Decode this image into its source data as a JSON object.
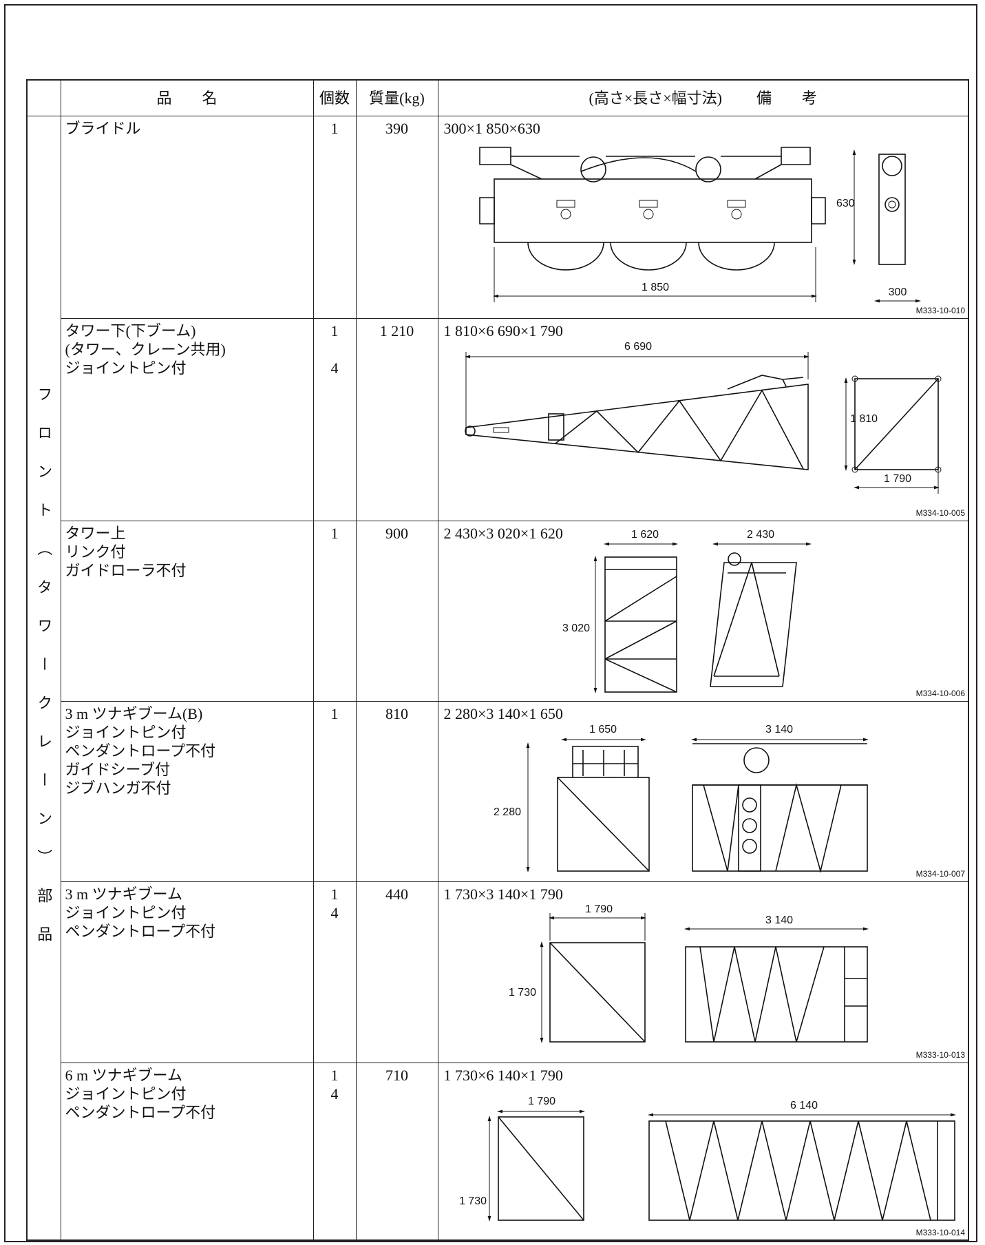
{
  "header": {
    "name": "品　　名",
    "count": "個数",
    "mass": "質量(kg)",
    "remarks_dims": "(高さ×長さ×幅寸法)",
    "remarks": "備　　考"
  },
  "group_label": "フロント（タワークレーン）部品",
  "rows": [
    {
      "name": [
        "ブライドル"
      ],
      "count": [
        "1"
      ],
      "mass": "390",
      "dimensions": "300×1 850×630",
      "drawing_labels": [
        "630",
        "1 850",
        "300"
      ],
      "figure_code": "M333-10-010"
    },
    {
      "name": [
        "タワー下(下ブーム)",
        "(タワー、クレーン共用)",
        "ジョイントピン付"
      ],
      "count": [
        "1",
        "4"
      ],
      "mass": "1 210",
      "dimensions": "1 810×6 690×1 790",
      "drawing_labels": [
        "6 690",
        "1 810",
        "1 790"
      ],
      "figure_code": "M334-10-005"
    },
    {
      "name": [
        "タワー上",
        "リンク付",
        "ガイドローラ不付"
      ],
      "count": [
        "1"
      ],
      "mass": "900",
      "dimensions": "2 430×3 020×1 620",
      "drawing_labels": [
        "1 620",
        "3 020",
        "2 430"
      ],
      "figure_code": "M334-10-006"
    },
    {
      "name": [
        "3 m ツナギブーム(B)",
        "ジョイントピン付",
        "ペンダントロープ不付",
        "ガイドシーブ付",
        "ジブハンガ不付"
      ],
      "count": [
        "1"
      ],
      "mass": "810",
      "dimensions": "2 280×3 140×1 650",
      "drawing_labels": [
        "1 650",
        "2 280",
        "3 140"
      ],
      "figure_code": "M334-10-007"
    },
    {
      "name": [
        "3 m ツナギブーム",
        "ジョイントピン付",
        "ペンダントロープ不付"
      ],
      "count": [
        "1",
        "4"
      ],
      "mass": "440",
      "dimensions": "1 730×3 140×1 790",
      "drawing_labels": [
        "1 790",
        "1 730",
        "3 140"
      ],
      "figure_code": "M333-10-013"
    },
    {
      "name": [
        "6 m ツナギブーム",
        "ジョイントピン付",
        "ペンダントロープ不付"
      ],
      "count": [
        "1",
        "4"
      ],
      "mass": "710",
      "dimensions": "1 730×6 140×1 790",
      "drawing_labels": [
        "1 790",
        "1 730",
        "6 140"
      ],
      "figure_code": "M333-10-014"
    }
  ]
}
